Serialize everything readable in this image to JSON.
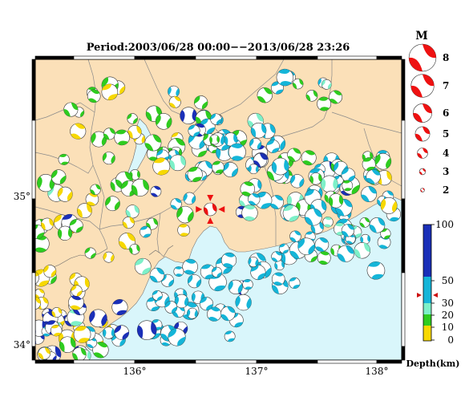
{
  "title": "Period:2003/06/28 00:00−−2013/06/28 23:26",
  "map": {
    "lon_ticks": [
      "136°",
      "137°",
      "138°"
    ],
    "lat_ticks": [
      "35°",
      "34°"
    ],
    "sea_color": "#d9f6fb",
    "land_color": "#fbe0b8",
    "border_color": "#8a8a8a"
  },
  "magnitude_legend": {
    "header": "M",
    "items": [
      {
        "label": "8",
        "m": 8
      },
      {
        "label": "7",
        "m": 7
      },
      {
        "label": "6",
        "m": 6
      },
      {
        "label": "5",
        "m": 5
      },
      {
        "label": "4",
        "m": 4
      },
      {
        "label": "3",
        "m": 3
      },
      {
        "label": "2",
        "m": 2
      }
    ],
    "color": "#ee1111"
  },
  "depth_legend": {
    "tick_labels": [
      "100",
      "50",
      "30",
      "20",
      "10",
      "0"
    ],
    "axis_label": "Depth(km)",
    "classes": [
      {
        "range": "0-10",
        "color": "#f7d800"
      },
      {
        "range": "10-20",
        "color": "#2ecc1f"
      },
      {
        "range": "20-30",
        "color": "#7df0c8"
      },
      {
        "range": "30-50",
        "color": "#15b5d8"
      },
      {
        "range": "50-100",
        "color": "#1a2fb8"
      }
    ],
    "highlight_marker_depth": "38 km"
  },
  "focus_event": {
    "lon": 136.62,
    "lat": 34.93,
    "m": 5.0,
    "color": "#ee1111",
    "marker_icon": "red-triangle-icon"
  }
}
